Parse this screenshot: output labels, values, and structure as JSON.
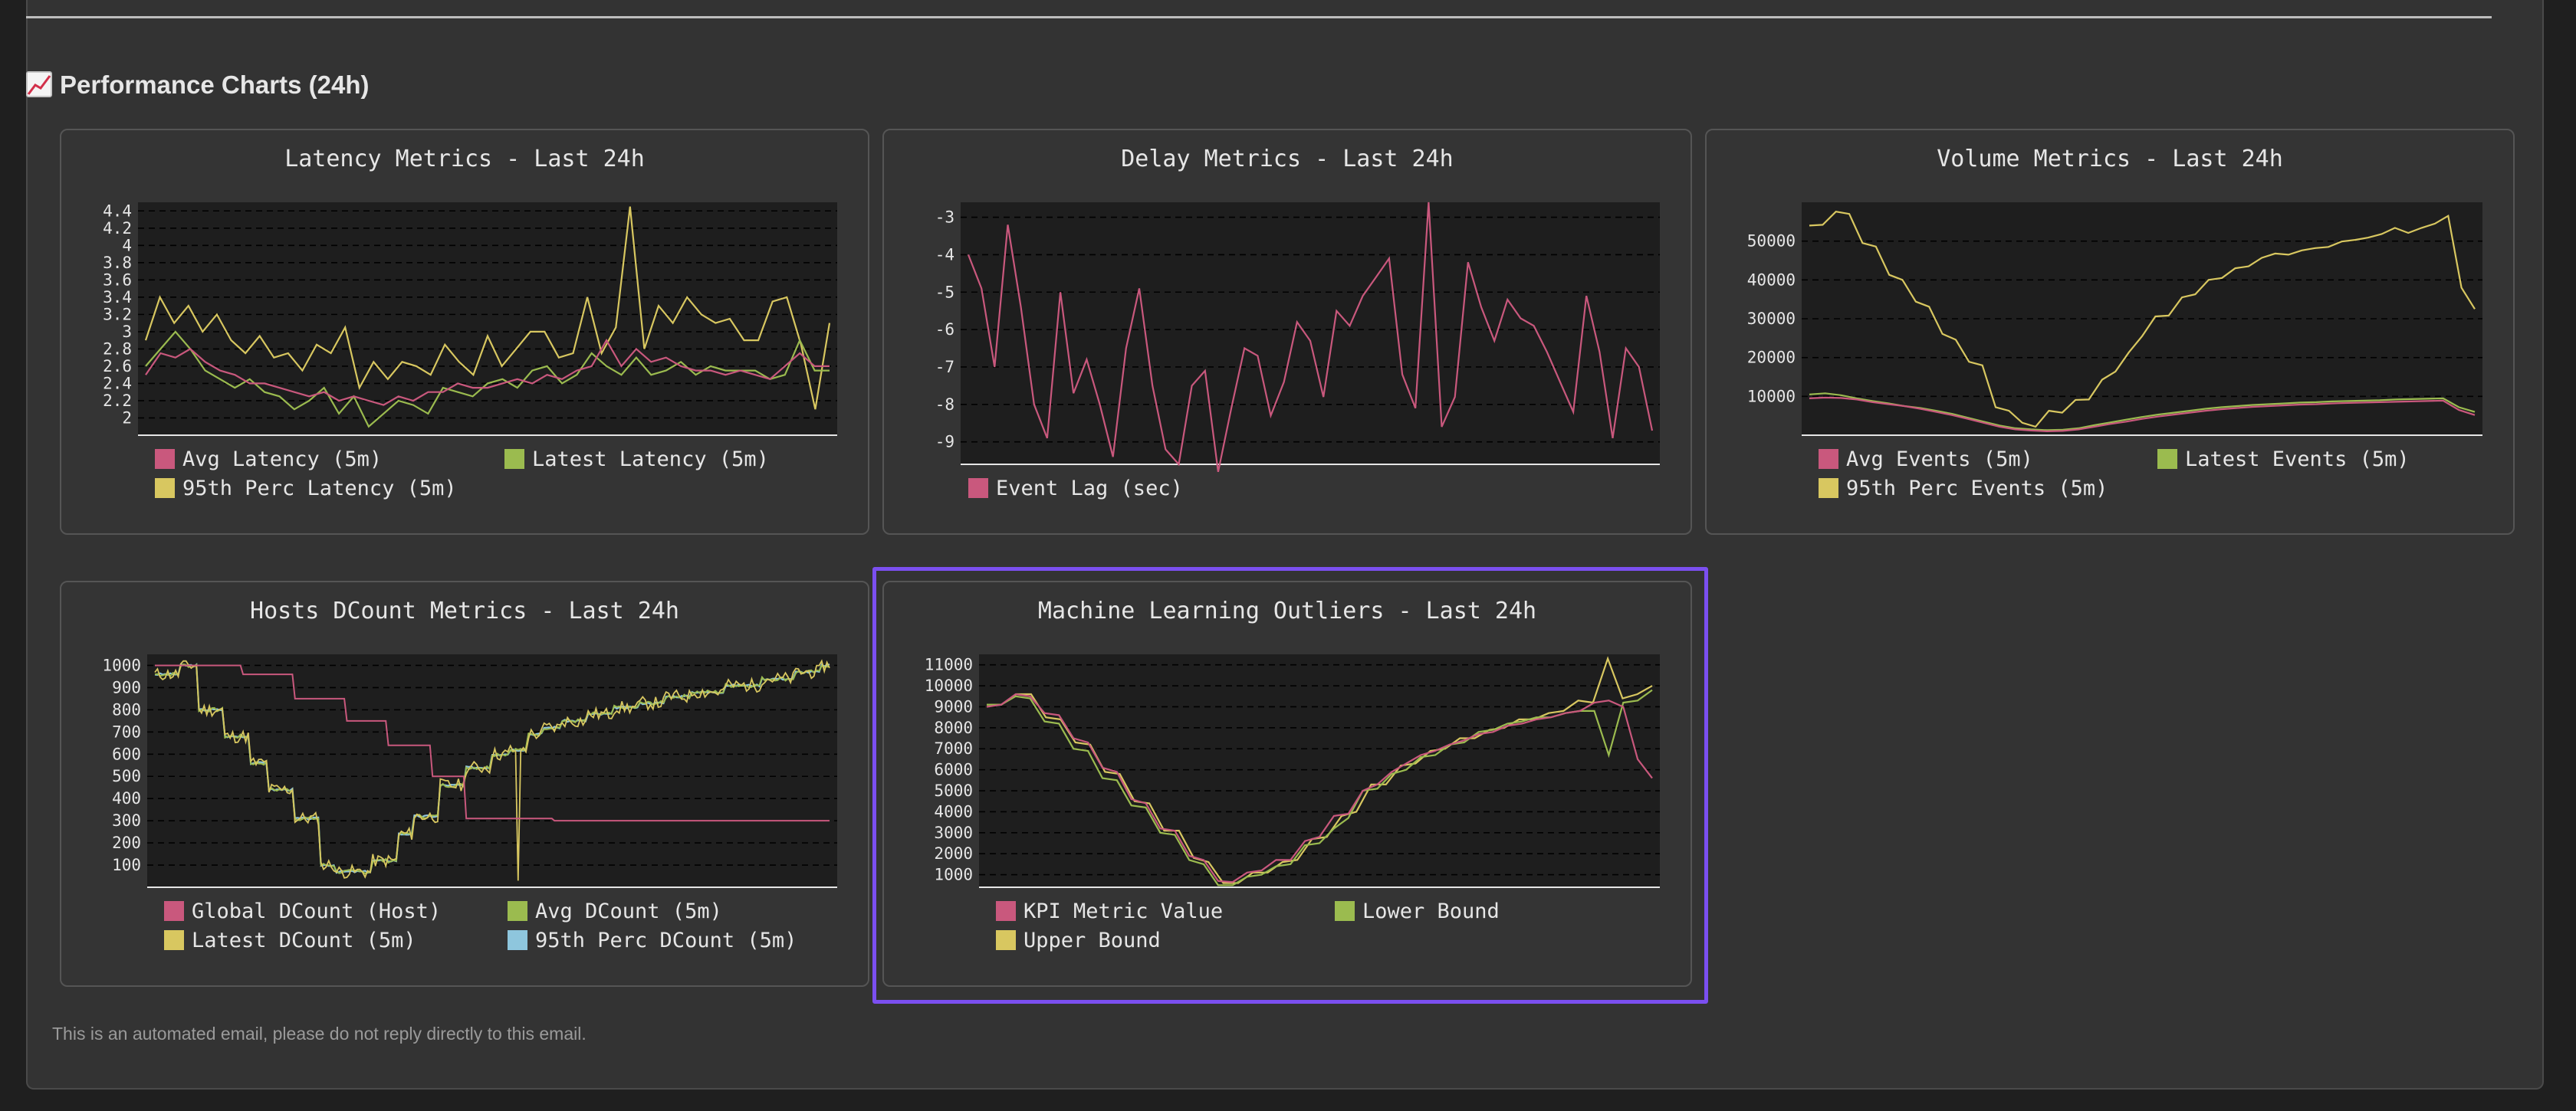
{
  "section": {
    "title": "Performance Charts (24h)",
    "icon": "chart-increasing-icon"
  },
  "footer": "This is an automated email, please do not reply directly to this email.",
  "colors": {
    "pink": "#c9587d",
    "green": "#9bbb4f",
    "yellow": "#d8c760",
    "blue": "#8ec6dd",
    "highlight": "#7b4ff0"
  },
  "chart_data": [
    {
      "type": "line",
      "title": "Latency Metrics - Last 24h",
      "ylim": [
        1.8,
        4.5
      ],
      "yticks": [
        "4.4",
        "4.2",
        "4",
        "3.8",
        "3.6",
        "3.4",
        "3.2",
        "3",
        "2.8",
        "2.6",
        "2.4",
        "2.2",
        "2"
      ],
      "ytick_values": [
        4.4,
        4.2,
        4,
        3.8,
        3.6,
        3.4,
        3.2,
        3,
        2.8,
        2.6,
        2.4,
        2.2,
        2
      ],
      "grid": true,
      "series": [
        {
          "name": "Avg Latency (5m)",
          "color": "#c9587d",
          "values": [
            2.5,
            2.75,
            2.7,
            2.8,
            2.65,
            2.55,
            2.5,
            2.4,
            2.4,
            2.35,
            2.3,
            2.25,
            2.3,
            2.2,
            2.25,
            2.2,
            2.15,
            2.25,
            2.2,
            2.3,
            2.3,
            2.4,
            2.35,
            2.35,
            2.4,
            2.45,
            2.4,
            2.5,
            2.45,
            2.55,
            2.6,
            2.9,
            2.6,
            2.8,
            2.65,
            2.7,
            2.6,
            2.55,
            2.55,
            2.5,
            2.55,
            2.5,
            2.45,
            2.6,
            2.75,
            2.6,
            2.6
          ]
        },
        {
          "name": "Latest Latency (5m)",
          "color": "#9bbb4f",
          "values": [
            2.6,
            2.8,
            3.0,
            2.8,
            2.55,
            2.45,
            2.35,
            2.45,
            2.3,
            2.25,
            2.1,
            2.2,
            2.35,
            2.05,
            2.25,
            1.9,
            2.05,
            2.2,
            2.15,
            2.05,
            2.35,
            2.3,
            2.25,
            2.4,
            2.45,
            2.35,
            2.55,
            2.6,
            2.4,
            2.5,
            2.75,
            2.6,
            2.5,
            2.7,
            2.5,
            2.55,
            2.65,
            2.5,
            2.6,
            2.55,
            2.55,
            2.55,
            2.45,
            2.5,
            2.9,
            2.55,
            2.55
          ]
        },
        {
          "name": "95th Perc Latency (5m)",
          "color": "#d8c760",
          "values": [
            2.9,
            3.4,
            3.1,
            3.3,
            3.0,
            3.2,
            2.9,
            2.75,
            2.95,
            2.7,
            2.75,
            2.55,
            2.85,
            2.75,
            3.05,
            2.35,
            2.65,
            2.45,
            2.65,
            2.6,
            2.5,
            2.85,
            2.65,
            2.5,
            2.95,
            2.6,
            2.8,
            3.0,
            3.0,
            2.7,
            2.75,
            3.4,
            2.75,
            3.05,
            4.45,
            2.8,
            3.3,
            3.1,
            3.4,
            3.2,
            3.1,
            3.15,
            2.9,
            2.9,
            3.35,
            3.4,
            2.85,
            2.1,
            3.1
          ]
        }
      ]
    },
    {
      "type": "line",
      "title": "Delay Metrics - Last 24h",
      "ylim": [
        -9.6,
        -2.6
      ],
      "yticks": [
        "-3",
        "-4",
        "-5",
        "-6",
        "-7",
        "-8",
        "-9"
      ],
      "ytick_values": [
        -3,
        -4,
        -5,
        -6,
        -7,
        -8,
        -9
      ],
      "grid": true,
      "series": [
        {
          "name": "Event Lag (sec)",
          "color": "#c9587d",
          "values": [
            -4,
            -4.9,
            -7,
            -3.2,
            -5.4,
            -8,
            -8.9,
            -5,
            -7.7,
            -6.8,
            -8,
            -9.4,
            -6.5,
            -4.9,
            -7.5,
            -9.2,
            -9.6,
            -7.5,
            -7.1,
            -9.8,
            -8.1,
            -6.5,
            -6.7,
            -8.3,
            -7.4,
            -5.8,
            -6.3,
            -7.8,
            -5.5,
            -5.9,
            -5.1,
            -4.6,
            -4.1,
            -7.2,
            -8.1,
            -2.6,
            -8.6,
            -7.8,
            -4.2,
            -5.4,
            -6.3,
            -5.2,
            -5.7,
            -5.9,
            -6.6,
            -7.4,
            -8.2,
            -5.1,
            -6.6,
            -8.9,
            -6.5,
            -7,
            -8.7
          ]
        }
      ]
    },
    {
      "type": "line",
      "title": "Volume Metrics - Last 24h",
      "ylim": [
        0,
        60000
      ],
      "yticks": [
        "50000",
        "40000",
        "30000",
        "20000",
        "10000"
      ],
      "ytick_values": [
        50000,
        40000,
        30000,
        20000,
        10000
      ],
      "grid": true,
      "series": [
        {
          "name": "Avg Events (5m)",
          "color": "#c9587d",
          "values": [
            9500,
            9700,
            9600,
            9200,
            8500,
            8000,
            7500,
            6800,
            6000,
            5200,
            4200,
            3200,
            2200,
            1500,
            1200,
            1000,
            1100,
            1500,
            2200,
            2900,
            3500,
            4200,
            4800,
            5300,
            5800,
            6300,
            6700,
            7000,
            7300,
            7500,
            7700,
            7900,
            8000,
            8200,
            8300,
            8400,
            8500,
            8600,
            8700,
            8800,
            8900,
            6500,
            5200
          ]
        },
        {
          "name": "Latest Events (5m)",
          "color": "#9bbb4f",
          "values": [
            10500,
            10800,
            10300,
            9500,
            8800,
            8200,
            7500,
            7000,
            6300,
            5500,
            4500,
            3500,
            2500,
            1800,
            1500,
            1300,
            1400,
            1800,
            2600,
            3300,
            4000,
            4700,
            5300,
            5800,
            6300,
            6800,
            7200,
            7500,
            7800,
            8000,
            8200,
            8400,
            8500,
            8700,
            8800,
            8900,
            9000,
            9200,
            9300,
            9400,
            9500,
            7200,
            6000
          ]
        },
        {
          "name": "95th Perc Events (5m)",
          "color": "#d8c760",
          "values": [
            54000,
            54200,
            57600,
            57000,
            49500,
            48600,
            41300,
            40000,
            34400,
            33100,
            26100,
            24600,
            18900,
            18000,
            7200,
            6300,
            3200,
            2200,
            6300,
            5800,
            9100,
            9200,
            14300,
            16400,
            21300,
            25500,
            30600,
            30800,
            35500,
            36300,
            40000,
            40500,
            43000,
            43500,
            45700,
            46800,
            46500,
            47600,
            48200,
            48500,
            49900,
            50300,
            50900,
            51800,
            53400,
            52100,
            53400,
            54500,
            56500,
            38000,
            32500
          ]
        }
      ]
    },
    {
      "type": "line",
      "title": "Hosts DCount Metrics - Last 24h",
      "ylim": [
        0,
        1050
      ],
      "yticks": [
        "1000",
        "900",
        "800",
        "700",
        "600",
        "500",
        "400",
        "300",
        "200",
        "100"
      ],
      "ytick_values": [
        1000,
        900,
        800,
        700,
        600,
        500,
        400,
        300,
        200,
        100
      ],
      "grid": true,
      "series": [
        {
          "name": "Global DCount (Host)",
          "color": "#c9587d"
        },
        {
          "name": "Avg DCount (5m)",
          "color": "#9bbb4f"
        },
        {
          "name": "Latest DCount (5m)",
          "color": "#d8c760"
        },
        {
          "name": "95th Perc DCount (5m)",
          "color": "#8ec6dd"
        }
      ],
      "pink_steps": [
        [
          0,
          1000
        ],
        [
          50,
          960
        ],
        [
          80,
          850
        ],
        [
          110,
          750
        ],
        [
          135,
          640
        ],
        [
          160,
          500
        ],
        [
          180,
          310
        ],
        [
          230,
          300
        ]
      ],
      "stair_steps": [
        [
          0,
          960
        ],
        [
          15,
          1000
        ],
        [
          25,
          800
        ],
        [
          40,
          680
        ],
        [
          55,
          560
        ],
        [
          65,
          440
        ],
        [
          80,
          310
        ],
        [
          95,
          100
        ],
        [
          105,
          70
        ],
        [
          115,
          70
        ],
        [
          125,
          120
        ],
        [
          140,
          240
        ],
        [
          150,
          320
        ],
        [
          165,
          460
        ],
        [
          180,
          540
        ],
        [
          195,
          600
        ],
        [
          205,
          620
        ],
        [
          215,
          690
        ],
        [
          225,
          720
        ],
        [
          235,
          750
        ],
        [
          250,
          780
        ],
        [
          265,
          810
        ],
        [
          280,
          830
        ],
        [
          295,
          860
        ],
        [
          310,
          880
        ],
        [
          330,
          910
        ],
        [
          350,
          940
        ],
        [
          370,
          970
        ],
        [
          385,
          1000
        ]
      ],
      "dip": {
        "x": 210,
        "value": 30
      },
      "x_max": 390
    },
    {
      "type": "line",
      "title": "Machine Learning Outliers - Last 24h",
      "ylim": [
        400,
        11500
      ],
      "yticks": [
        "11000",
        "10000",
        "9000",
        "8000",
        "7000",
        "6000",
        "5000",
        "4000",
        "3000",
        "2000",
        "1000"
      ],
      "ytick_values": [
        11000,
        10000,
        9000,
        8000,
        7000,
        6000,
        5000,
        4000,
        3000,
        2000,
        1000
      ],
      "grid": true,
      "series": [
        {
          "name": "KPI Metric Value",
          "color": "#c9587d",
          "values": [
            9000,
            9100,
            9600,
            9500,
            8700,
            8600,
            7500,
            7300,
            6100,
            5900,
            4600,
            4400,
            3200,
            3100,
            1900,
            1700,
            700,
            650,
            1100,
            1200,
            1700,
            1700,
            2600,
            2800,
            3800,
            3900,
            5000,
            5300,
            5900,
            6300,
            6700,
            6900,
            7200,
            7400,
            7700,
            7800,
            8100,
            8200,
            8400,
            8500,
            8700,
            8800,
            9200,
            9300,
            9000,
            6500,
            5600
          ]
        },
        {
          "name": "Lower Bound",
          "color": "#9bbb4f",
          "values": [
            9100,
            9100,
            9500,
            9400,
            8300,
            8200,
            7000,
            6900,
            5600,
            5500,
            4300,
            4200,
            3000,
            2900,
            1700,
            1500,
            500,
            500,
            900,
            1000,
            1400,
            1500,
            2400,
            2500,
            3200,
            3700,
            5000,
            5100,
            5800,
            6000,
            6600,
            6700,
            7200,
            7300,
            7800,
            7900,
            8200,
            8300,
            8500,
            8500,
            8700,
            8800,
            8800,
            6700,
            9200,
            9300,
            9800
          ]
        },
        {
          "name": "Upper Bound",
          "color": "#d8c760",
          "values": [
            9100,
            9100,
            9600,
            9600,
            8500,
            8400,
            7300,
            7200,
            5900,
            5800,
            4500,
            4400,
            3100,
            3100,
            1800,
            1600,
            600,
            600,
            1100,
            1100,
            1600,
            1700,
            2700,
            2800,
            3800,
            4000,
            5300,
            5300,
            6200,
            6300,
            6900,
            7000,
            7500,
            7500,
            7900,
            8000,
            8400,
            8400,
            8700,
            8800,
            9300,
            9200,
            11300,
            9400,
            9600,
            10000
          ]
        }
      ]
    }
  ]
}
